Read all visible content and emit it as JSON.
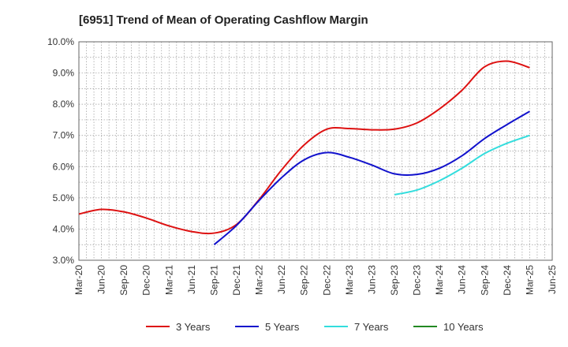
{
  "chart_data": {
    "type": "line",
    "title": "[6951]  Trend of Mean of Operating Cashflow Margin",
    "xlabel": "",
    "ylabel": "",
    "ylim": [
      3.0,
      10.0
    ],
    "grid": true,
    "legend_position": "bottom",
    "x_ticks": [
      "Mar-20",
      "Jun-20",
      "Sep-20",
      "Dec-20",
      "Mar-21",
      "Jun-21",
      "Sep-21",
      "Dec-21",
      "Mar-22",
      "Jun-22",
      "Sep-22",
      "Dec-22",
      "Mar-23",
      "Jun-23",
      "Sep-23",
      "Dec-23",
      "Mar-24",
      "Jun-24",
      "Sep-24",
      "Dec-24",
      "Mar-25",
      "Jun-25"
    ],
    "y_ticks": [
      "3.0%",
      "4.0%",
      "5.0%",
      "6.0%",
      "7.0%",
      "8.0%",
      "9.0%",
      "10.0%"
    ],
    "series": [
      {
        "name": "3 Years",
        "color": "#dd1111",
        "x": [
          "Mar-20",
          "Jun-20",
          "Sep-20",
          "Dec-20",
          "Mar-21",
          "Jun-21",
          "Sep-21",
          "Dec-21",
          "Mar-22",
          "Jun-22",
          "Sep-22",
          "Dec-22",
          "Mar-23",
          "Jun-23",
          "Sep-23",
          "Dec-23",
          "Mar-24",
          "Jun-24",
          "Sep-24",
          "Dec-24",
          "Mar-25"
        ],
        "y": [
          4.48,
          4.63,
          4.55,
          4.35,
          4.1,
          3.92,
          3.87,
          4.15,
          4.95,
          5.9,
          6.7,
          7.2,
          7.22,
          7.18,
          7.2,
          7.4,
          7.85,
          8.45,
          9.2,
          9.38,
          9.17
        ]
      },
      {
        "name": "5 Years",
        "color": "#1111cc",
        "x": [
          "Sep-21",
          "Dec-21",
          "Mar-22",
          "Jun-22",
          "Sep-22",
          "Dec-22",
          "Mar-23",
          "Jun-23",
          "Sep-23",
          "Dec-23",
          "Mar-24",
          "Jun-24",
          "Sep-24",
          "Dec-24",
          "Mar-25"
        ],
        "y": [
          3.5,
          4.12,
          4.92,
          5.65,
          6.22,
          6.45,
          6.3,
          6.05,
          5.77,
          5.75,
          5.95,
          6.35,
          6.9,
          7.35,
          7.77
        ]
      },
      {
        "name": "7 Years",
        "color": "#33dddd",
        "x": [
          "Sep-23",
          "Dec-23",
          "Mar-24",
          "Jun-24",
          "Sep-24",
          "Dec-24",
          "Mar-25"
        ],
        "y": [
          5.1,
          5.25,
          5.55,
          5.95,
          6.42,
          6.75,
          7.0
        ]
      },
      {
        "name": "10 Years",
        "color": "#228822",
        "x": [],
        "y": []
      }
    ]
  }
}
